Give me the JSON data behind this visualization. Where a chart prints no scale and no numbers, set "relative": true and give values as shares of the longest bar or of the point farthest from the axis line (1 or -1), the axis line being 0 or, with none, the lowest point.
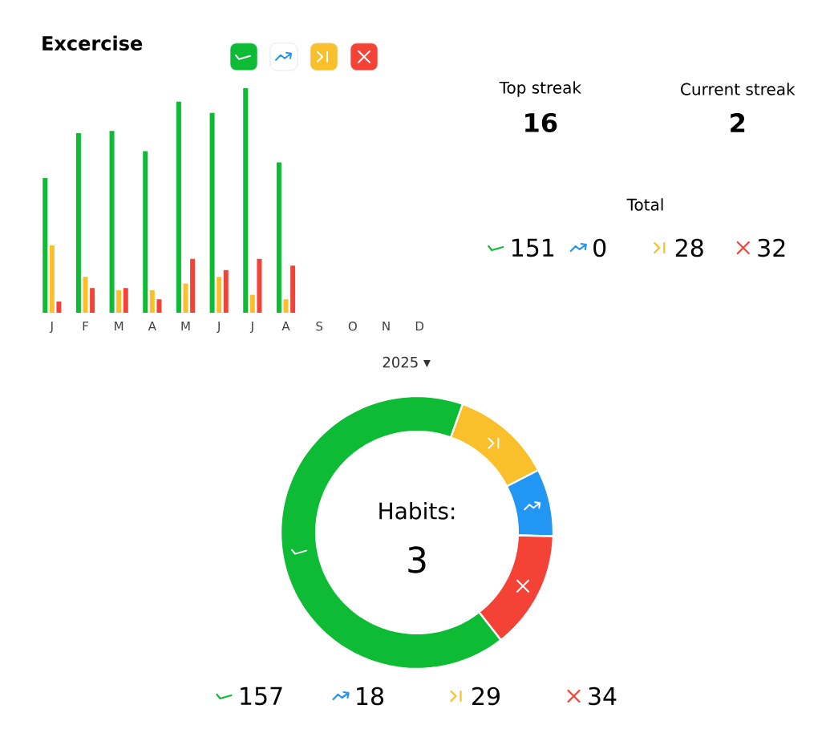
{
  "chart_data": [
    {
      "type": "bar",
      "title": "Excercise",
      "categories": [
        "J",
        "F",
        "M",
        "A",
        "M",
        "J",
        "J",
        "A",
        "S",
        "O",
        "N",
        "D"
      ],
      "relative": true,
      "series": [
        {
          "color": "#0dbb34",
          "values": [
            0.6,
            0.8,
            0.81,
            0.72,
            0.94,
            0.89,
            1,
            0.67,
            null,
            null,
            null,
            null
          ]
        },
        {
          "color": "#f9c02b",
          "values": [
            0.3,
            0.16,
            0.1,
            0.1,
            0.13,
            0.16,
            0.08,
            0.06,
            null,
            null,
            null,
            null
          ]
        },
        {
          "color": "#f44336",
          "values": [
            0.05,
            0.11,
            0.11,
            0.06,
            0.24,
            0.19,
            0.24,
            0.21,
            null,
            null,
            null,
            null
          ]
        }
      ],
      "annotations": [
        "2025 ▾"
      ]
    },
    {
      "type": "other",
      "annotations": [
        "Top streak",
        "16",
        "Current streak",
        "2",
        "Total"
      ],
      "categories": [
        null,
        null,
        null,
        null
      ],
      "values": [
        151,
        0,
        28,
        32
      ],
      "colors": [
        "#0dbb34",
        "#2196f3",
        "#f9c02b",
        "#f44336"
      ],
      "data_labels": true
    },
    {
      "type": "donut",
      "categories": [
        null,
        null,
        null,
        null
      ],
      "values": [
        66,
        12,
        8,
        14
      ],
      "colors": [
        "#0dbb34",
        "#f9c02b",
        "#2196f3",
        "#f44336"
      ],
      "annotations": [
        "Habits:",
        "3"
      ]
    },
    {
      "type": "other",
      "categories": [
        null,
        null,
        null,
        null
      ],
      "values": [
        157,
        18,
        29,
        34
      ],
      "colors": [
        "#0dbb34",
        "#2196f3",
        "#f9c02b",
        "#f44336"
      ],
      "data_labels": true
    }
  ]
}
